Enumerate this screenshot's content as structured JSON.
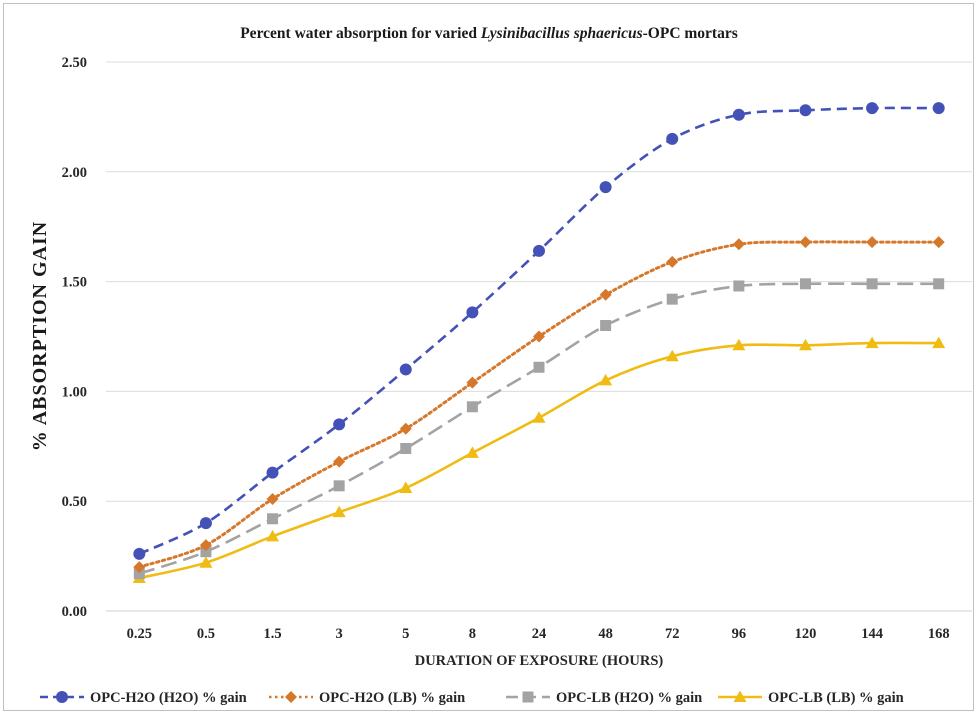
{
  "chart_data": {
    "type": "line",
    "title": {
      "prefix": "Percent water absorption  for varied ",
      "italic": "Lysinibacillus sphaericus",
      "suffix": "-OPC mortars"
    },
    "xlabel": "DURATION OF EXPOSURE (HOURS)",
    "ylabel": "% ABSORPTION GAIN",
    "categories": [
      "0.25",
      "0.5",
      "1.5",
      "3",
      "5",
      "8",
      "24",
      "48",
      "72",
      "96",
      "120",
      "144",
      "168"
    ],
    "ylim": [
      0,
      2.5
    ],
    "yticks": [
      "0.00",
      "0.50",
      "1.00",
      "1.50",
      "2.00",
      "2.50"
    ],
    "grid": "horizontal",
    "legend_position": "bottom",
    "series": [
      {
        "name": "OPC-H2O (H2O) % gain",
        "color": "#4452b8",
        "marker": "circle",
        "dash": "dashed",
        "values": [
          0.26,
          0.4,
          0.63,
          0.85,
          1.1,
          1.36,
          1.64,
          1.93,
          2.15,
          2.26,
          2.28,
          2.29,
          2.29
        ]
      },
      {
        "name": "OPC-H2O (LB) % gain",
        "color": "#d5782c",
        "marker": "diamond",
        "dash": "dotted",
        "values": [
          0.2,
          0.3,
          0.51,
          0.68,
          0.83,
          1.04,
          1.25,
          1.44,
          1.59,
          1.67,
          1.68,
          1.68,
          1.68
        ]
      },
      {
        "name": "OPC-LB (H2O) % gain",
        "color": "#a3a3a3",
        "marker": "square",
        "dash": "longdash",
        "values": [
          0.17,
          0.27,
          0.42,
          0.57,
          0.74,
          0.93,
          1.11,
          1.3,
          1.42,
          1.48,
          1.49,
          1.49,
          1.49
        ]
      },
      {
        "name": "OPC-LB (LB) % gain",
        "color": "#f0bb12",
        "marker": "triangle",
        "dash": "solid",
        "values": [
          0.15,
          0.22,
          0.34,
          0.45,
          0.56,
          0.72,
          0.88,
          1.05,
          1.16,
          1.21,
          1.21,
          1.22,
          1.22
        ]
      }
    ]
  }
}
